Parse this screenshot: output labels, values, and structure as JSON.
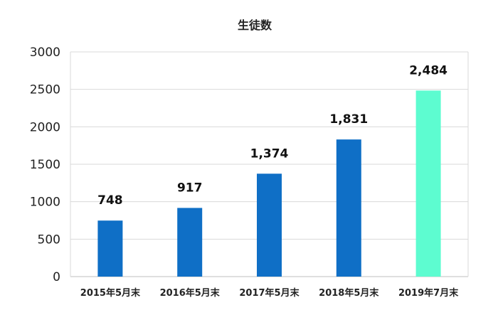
{
  "chart_data": {
    "type": "bar",
    "title": "生徒数",
    "categories": [
      "2015年5月末",
      "2016年5月末",
      "2017年5月末",
      "2018年5月末",
      "2019年7月末"
    ],
    "values": [
      748,
      917,
      1374,
      1831,
      2484
    ],
    "data_labels": [
      "748",
      "917",
      "1,374",
      "1,831",
      "2,484"
    ],
    "ylim": [
      0,
      3000
    ],
    "yticks": [
      "0",
      "500",
      "1000",
      "1500",
      "2000",
      "2500",
      "3000"
    ],
    "ytick_values": [
      0,
      500,
      1000,
      1500,
      2000,
      2500,
      3000
    ],
    "xlabel": "",
    "ylabel": "",
    "grid": true,
    "legend": "none",
    "colors": {
      "bar": "#0f6fc6",
      "highlight": "#5dfcd0",
      "grid": "#d9d9d9",
      "axis": "#bfbfbf"
    },
    "highlight_index": 4
  }
}
